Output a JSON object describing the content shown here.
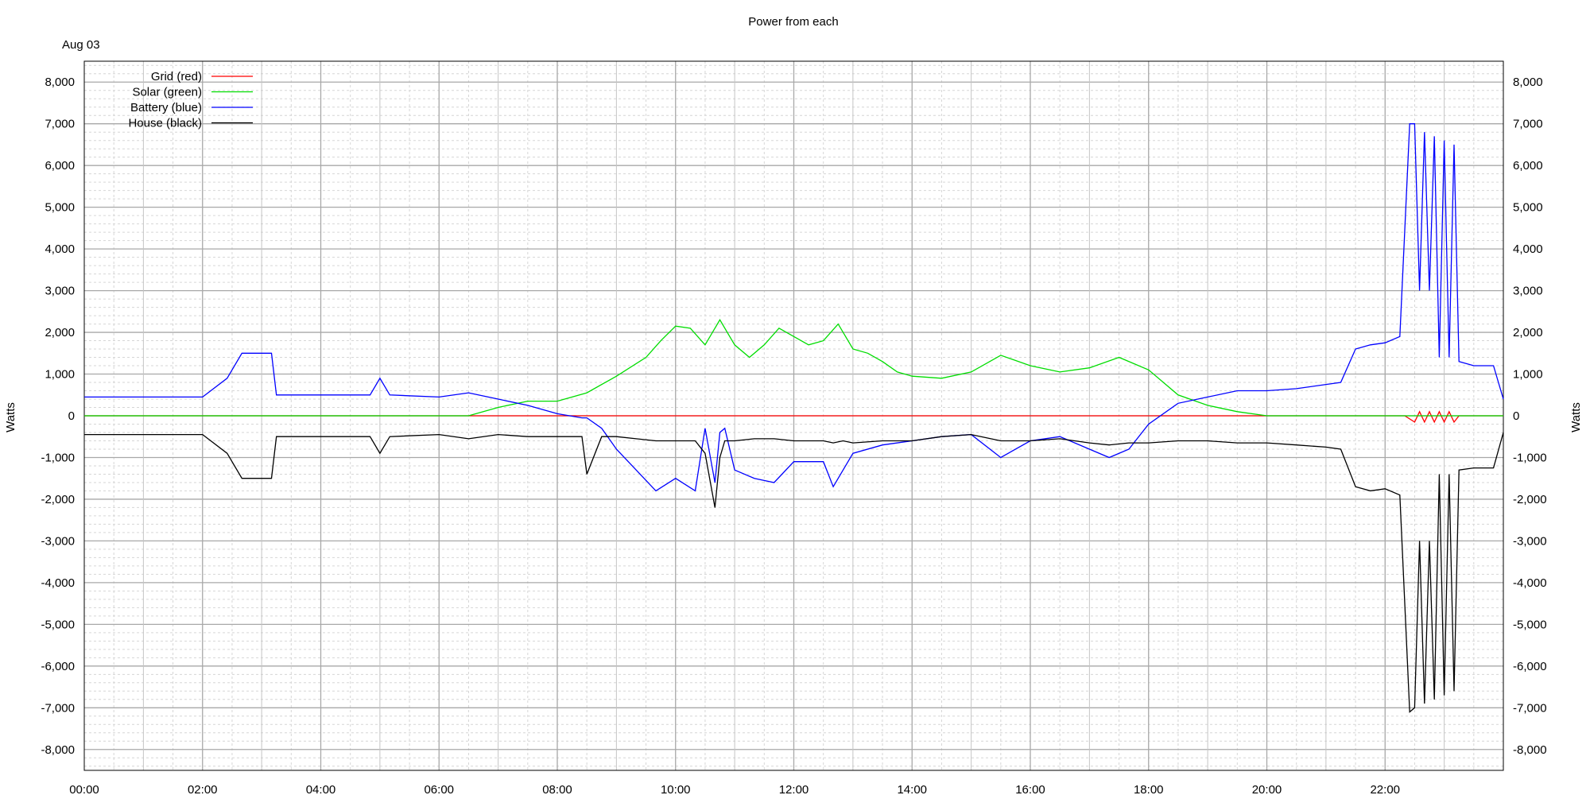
{
  "chart_data": {
    "type": "line",
    "title": "Power from each",
    "date_label": "Aug 03",
    "ylabel_left": "Watts",
    "ylabel_right": "Watts",
    "xlim": [
      "00:00",
      "24:00"
    ],
    "ylim": [
      -8500,
      8500
    ],
    "grid": true,
    "legend_position": "top-left",
    "x_tick_labels": [
      "00:00",
      "02:00",
      "04:00",
      "06:00",
      "08:00",
      "10:00",
      "12:00",
      "14:00",
      "16:00",
      "18:00",
      "20:00",
      "22:00"
    ],
    "y_tick_labels": [
      "8,000",
      "7,000",
      "6,000",
      "5,000",
      "4,000",
      "3,000",
      "2,000",
      "1,000",
      "0",
      "-1,000",
      "-2,000",
      "-3,000",
      "-4,000",
      "-5,000",
      "-6,000",
      "-7,000",
      "-8,000"
    ],
    "series": [
      {
        "name": "Grid (red)",
        "color": "#ff0000",
        "x": [
          "00:00",
          "21:30",
          "22:20",
          "22:30",
          "22:35",
          "22:40",
          "22:45",
          "22:50",
          "22:55",
          "23:00",
          "23:05",
          "23:10",
          "23:15",
          "24:00"
        ],
        "values": [
          0,
          0,
          0,
          -150,
          100,
          -150,
          100,
          -150,
          100,
          -150,
          100,
          -150,
          0,
          0
        ]
      },
      {
        "name": "Solar (green)",
        "color": "#00dd00",
        "x": [
          "00:00",
          "06:30",
          "07:00",
          "07:30",
          "08:00",
          "08:30",
          "09:00",
          "09:30",
          "09:45",
          "10:00",
          "10:15",
          "10:30",
          "10:45",
          "11:00",
          "11:15",
          "11:30",
          "11:45",
          "12:00",
          "12:15",
          "12:30",
          "12:45",
          "13:00",
          "13:15",
          "13:30",
          "13:45",
          "14:00",
          "14:30",
          "15:00",
          "15:30",
          "16:00",
          "16:30",
          "17:00",
          "17:30",
          "18:00",
          "18:30",
          "19:00",
          "19:30",
          "20:00",
          "24:00"
        ],
        "values": [
          0,
          0,
          200,
          350,
          350,
          550,
          950,
          1400,
          1800,
          2150,
          2100,
          1700,
          2300,
          1700,
          1400,
          1700,
          2100,
          1900,
          1700,
          1800,
          2200,
          1600,
          1500,
          1300,
          1050,
          950,
          900,
          1050,
          1450,
          1200,
          1050,
          1150,
          1400,
          1100,
          500,
          250,
          100,
          0,
          0
        ]
      },
      {
        "name": "Battery (blue)",
        "color": "#0000ff",
        "x": [
          "00:00",
          "02:00",
          "02:25",
          "02:40",
          "03:10",
          "03:15",
          "04:50",
          "05:00",
          "05:10",
          "06:00",
          "06:30",
          "07:00",
          "07:30",
          "08:00",
          "08:25",
          "08:30",
          "08:45",
          "09:00",
          "09:20",
          "09:40",
          "10:00",
          "10:20",
          "10:30",
          "10:40",
          "10:45",
          "10:50",
          "11:00",
          "11:20",
          "11:40",
          "12:00",
          "12:30",
          "12:40",
          "12:50",
          "13:00",
          "13:30",
          "14:00",
          "14:30",
          "15:00",
          "15:30",
          "16:00",
          "16:30",
          "17:00",
          "17:20",
          "17:40",
          "18:00",
          "18:30",
          "19:00",
          "19:30",
          "20:00",
          "20:30",
          "21:00",
          "21:15",
          "21:30",
          "21:45",
          "22:00",
          "22:15",
          "22:25",
          "22:30",
          "22:35",
          "22:40",
          "22:45",
          "22:50",
          "22:55",
          "23:00",
          "23:05",
          "23:10",
          "23:15",
          "23:30",
          "23:50",
          "24:00"
        ],
        "values": [
          450,
          450,
          900,
          1500,
          1500,
          500,
          500,
          900,
          500,
          450,
          550,
          400,
          250,
          50,
          -50,
          -50,
          -300,
          -800,
          -1300,
          -1800,
          -1500,
          -1800,
          -300,
          -1600,
          -400,
          -300,
          -1300,
          -1500,
          -1600,
          -1100,
          -1100,
          -1700,
          -1300,
          -900,
          -700,
          -600,
          -500,
          -450,
          -1000,
          -600,
          -500,
          -800,
          -1000,
          -800,
          -200,
          300,
          450,
          600,
          600,
          650,
          750,
          800,
          1600,
          1700,
          1750,
          1900,
          7000,
          7000,
          3000,
          6800,
          3000,
          6700,
          1400,
          6600,
          1400,
          6500,
          1300,
          1200,
          1200,
          400
        ]
      },
      {
        "name": "House (black)",
        "color": "#000000",
        "x": [
          "00:00",
          "02:00",
          "02:25",
          "02:40",
          "03:10",
          "03:15",
          "04:50",
          "05:00",
          "05:10",
          "06:00",
          "06:30",
          "07:00",
          "07:30",
          "08:00",
          "08:25",
          "08:30",
          "08:45",
          "09:00",
          "09:20",
          "09:40",
          "10:00",
          "10:20",
          "10:30",
          "10:40",
          "10:45",
          "10:50",
          "11:00",
          "11:20",
          "11:40",
          "12:00",
          "12:30",
          "12:40",
          "12:50",
          "13:00",
          "13:30",
          "14:00",
          "14:30",
          "15:00",
          "15:30",
          "16:00",
          "16:30",
          "17:00",
          "17:20",
          "17:40",
          "18:00",
          "18:30",
          "19:00",
          "19:30",
          "20:00",
          "20:30",
          "21:00",
          "21:15",
          "21:30",
          "21:45",
          "22:00",
          "22:15",
          "22:25",
          "22:30",
          "22:35",
          "22:40",
          "22:45",
          "22:50",
          "22:55",
          "23:00",
          "23:05",
          "23:10",
          "23:15",
          "23:30",
          "23:50",
          "24:00"
        ],
        "values": [
          -450,
          -450,
          -900,
          -1500,
          -1500,
          -500,
          -500,
          -900,
          -500,
          -450,
          -550,
          -450,
          -500,
          -500,
          -500,
          -1400,
          -500,
          -500,
          -550,
          -600,
          -600,
          -600,
          -900,
          -2200,
          -1000,
          -600,
          -600,
          -550,
          -550,
          -600,
          -600,
          -650,
          -600,
          -650,
          -600,
          -600,
          -500,
          -450,
          -600,
          -600,
          -550,
          -650,
          -700,
          -650,
          -650,
          -600,
          -600,
          -650,
          -650,
          -700,
          -750,
          -800,
          -1700,
          -1800,
          -1750,
          -1900,
          -7100,
          -7000,
          -3000,
          -6900,
          -3000,
          -6800,
          -1400,
          -6700,
          -1400,
          -6600,
          -1300,
          -1250,
          -1250,
          -400
        ]
      }
    ]
  }
}
